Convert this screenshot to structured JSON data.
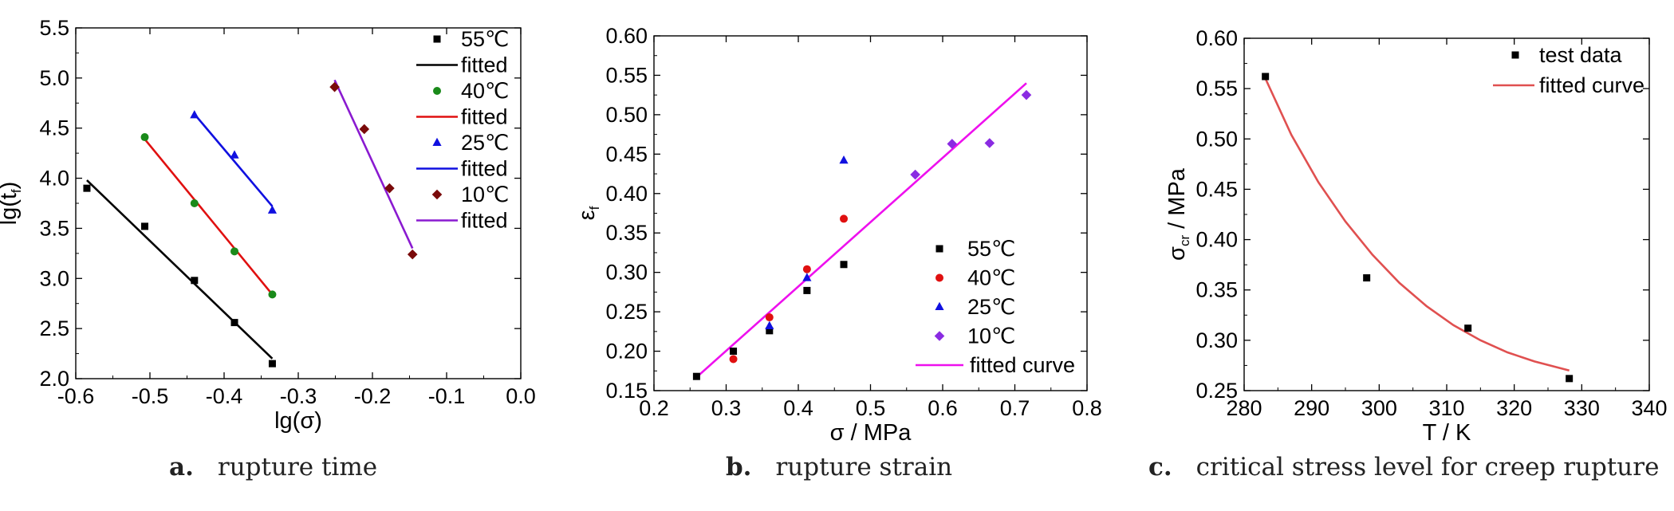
{
  "captions": {
    "a_letter": "a.",
    "a_text": "rupture time",
    "b_letter": "b.",
    "b_text": "rupture strain",
    "c_letter": "c.",
    "c_text": "critical stress level for creep rupture"
  },
  "chart_data": [
    {
      "type": "scatter",
      "id": "a",
      "xlabel": "lg(σ)",
      "ylabel": "lg(t_f)",
      "xlim": [
        -0.6,
        0.0
      ],
      "ylim": [
        2.0,
        5.5
      ],
      "xticks": [
        "-0.6",
        "-0.5",
        "-0.4",
        "-0.3",
        "-0.2",
        "-0.1",
        "0.0"
      ],
      "yticks": [
        "2.0",
        "2.5",
        "3.0",
        "3.5",
        "4.0",
        "4.5",
        "5.0",
        "5.5"
      ],
      "grid": false,
      "legend_position": "top-right",
      "series": [
        {
          "name": "55℃",
          "marker": "square",
          "color": "#000000",
          "x": [
            -0.585,
            -0.507,
            -0.44,
            -0.386,
            -0.335
          ],
          "y": [
            3.9,
            3.52,
            2.98,
            2.56,
            2.15
          ],
          "fit_name": "fitted",
          "fit_color": "#000000",
          "fit_x": [
            -0.585,
            -0.335
          ],
          "fit_y": [
            3.98,
            2.2
          ]
        },
        {
          "name": "40℃",
          "marker": "circle",
          "color": "#1a8a1a",
          "x": [
            -0.507,
            -0.44,
            -0.386,
            -0.335
          ],
          "y": [
            4.41,
            3.75,
            3.27,
            2.84
          ],
          "fit_name": "fitted",
          "fit_color": "#e01010",
          "fit_x": [
            -0.507,
            -0.335
          ],
          "fit_y": [
            4.39,
            2.84
          ]
        },
        {
          "name": "25℃",
          "marker": "triangle",
          "color": "#1010e0",
          "x": [
            -0.44,
            -0.386,
            -0.335
          ],
          "y": [
            4.63,
            4.23,
            3.68
          ],
          "fit_name": "fitted",
          "fit_color": "#1010e0",
          "fit_x": [
            -0.44,
            -0.335
          ],
          "fit_y": [
            4.64,
            3.72
          ]
        },
        {
          "name": "10℃",
          "marker": "diamond",
          "color": "#7a0a0a",
          "x": [
            -0.251,
            -0.211,
            -0.177,
            -0.146
          ],
          "y": [
            4.91,
            4.49,
            3.9,
            3.24
          ],
          "fit_name": "fitted",
          "fit_color": "#8a1ad0",
          "fit_x": [
            -0.251,
            -0.146
          ],
          "fit_y": [
            4.98,
            3.3
          ]
        }
      ]
    },
    {
      "type": "scatter",
      "id": "b",
      "xlabel": "σ / MPa",
      "ylabel": "ε_f",
      "xlim": [
        0.2,
        0.8
      ],
      "ylim": [
        0.15,
        0.6
      ],
      "xticks": [
        "0.2",
        "0.3",
        "0.4",
        "0.5",
        "0.6",
        "0.7",
        "0.8"
      ],
      "yticks": [
        "0.15",
        "0.20",
        "0.25",
        "0.30",
        "0.35",
        "0.40",
        "0.45",
        "0.50",
        "0.55",
        "0.60"
      ],
      "grid": false,
      "legend_position": "bottom-right",
      "series": [
        {
          "name": "55℃",
          "marker": "square",
          "color": "#000000",
          "x": [
            0.259,
            0.31,
            0.36,
            0.412,
            0.463
          ],
          "y": [
            0.168,
            0.2,
            0.226,
            0.277,
            0.31
          ]
        },
        {
          "name": "40℃",
          "marker": "circle",
          "color": "#e01010",
          "x": [
            0.31,
            0.36,
            0.412,
            0.463
          ],
          "y": [
            0.19,
            0.243,
            0.304,
            0.368
          ]
        },
        {
          "name": "25℃",
          "marker": "triangle",
          "color": "#1010e0",
          "x": [
            0.36,
            0.412,
            0.463
          ],
          "y": [
            0.232,
            0.293,
            0.442
          ]
        },
        {
          "name": "10℃",
          "marker": "diamond",
          "color": "#8a2be2",
          "x": [
            0.562,
            0.613,
            0.665,
            0.716
          ],
          "y": [
            0.424,
            0.463,
            0.464,
            0.525
          ]
        }
      ],
      "fit": {
        "name": "fitted curve",
        "color": "#ee10ee",
        "x": [
          0.259,
          0.716
        ],
        "y": [
          0.167,
          0.54
        ]
      }
    },
    {
      "type": "scatter",
      "id": "c",
      "xlabel": "T / K",
      "ylabel": "σ_cr / MPa",
      "xlim": [
        280,
        340
      ],
      "ylim": [
        0.25,
        0.6
      ],
      "xticks": [
        "280",
        "290",
        "300",
        "310",
        "320",
        "330",
        "340"
      ],
      "yticks": [
        "0.25",
        "0.30",
        "0.35",
        "0.40",
        "0.45",
        "0.50",
        "0.55",
        "0.60"
      ],
      "grid": false,
      "legend_position": "top-right",
      "series": [
        {
          "name": "test data",
          "marker": "square",
          "color": "#000000",
          "x": [
            283.15,
            298.15,
            313.15,
            328.15
          ],
          "y": [
            0.562,
            0.362,
            0.312,
            0.262
          ]
        }
      ],
      "fit": {
        "name": "fitted curve",
        "color": "#e05050",
        "x": [
          283.15,
          287,
          291,
          295,
          299,
          303,
          307,
          311,
          315,
          319,
          323,
          328.15
        ],
        "y": [
          0.56,
          0.504,
          0.457,
          0.418,
          0.385,
          0.357,
          0.334,
          0.315,
          0.3,
          0.288,
          0.279,
          0.27
        ]
      }
    }
  ]
}
